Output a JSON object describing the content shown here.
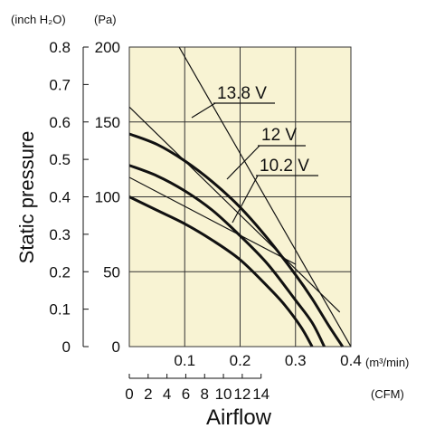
{
  "chart_data": {
    "type": "line",
    "xlabel": "Airflow",
    "ylabel": "Static pressure",
    "x_unit_primary": "(m³/min)",
    "x_unit_secondary": "(CFM)",
    "y_unit_primary": "(Pa)",
    "y_unit_secondary": "(inch H₂O)",
    "xlim": [
      0,
      0.4
    ],
    "ylim": [
      0,
      200
    ],
    "x_ticks_primary": [
      "0.1",
      "0.2",
      "0.3",
      "0.4"
    ],
    "x_ticks_secondary": [
      "0",
      "2",
      "4",
      "6",
      "8",
      "10",
      "12",
      "14"
    ],
    "y_ticks_primary": [
      "0",
      "50",
      "100",
      "150",
      "200"
    ],
    "y_ticks_secondary": [
      "0",
      "0.1",
      "0.2",
      "0.3",
      "0.4",
      "0.5",
      "0.6",
      "0.7",
      "0.8"
    ],
    "grid": true,
    "background_color": "#f8f3d3",
    "series": [
      {
        "name": "13.8 V",
        "x": [
          0,
          0.05,
          0.1,
          0.15,
          0.2,
          0.25,
          0.3,
          0.33,
          0.36,
          0.385
        ],
        "y": [
          142,
          135,
          124,
          110,
          93,
          72,
          48,
          32,
          14,
          0
        ]
      },
      {
        "name": "12 V",
        "x": [
          0,
          0.05,
          0.1,
          0.15,
          0.2,
          0.25,
          0.3,
          0.33,
          0.352
        ],
        "y": [
          121,
          114,
          104,
          91,
          74,
          55,
          31,
          16,
          0
        ]
      },
      {
        "name": "10.2 V",
        "x": [
          0,
          0.05,
          0.1,
          0.15,
          0.2,
          0.25,
          0.28,
          0.31,
          0.33
        ],
        "y": [
          100,
          91,
          82,
          71,
          58,
          40,
          28,
          13,
          0
        ]
      }
    ],
    "system_impedance": [
      {
        "x": [
          0.0,
          0.4
        ],
        "y": [
          258,
          0
        ]
      },
      {
        "x": [
          0.0,
          0.3
        ],
        "y": [
          113,
          55
        ]
      },
      {
        "x": [
          0.0,
          0.38
        ],
        "y": [
          160,
          23
        ]
      }
    ]
  }
}
